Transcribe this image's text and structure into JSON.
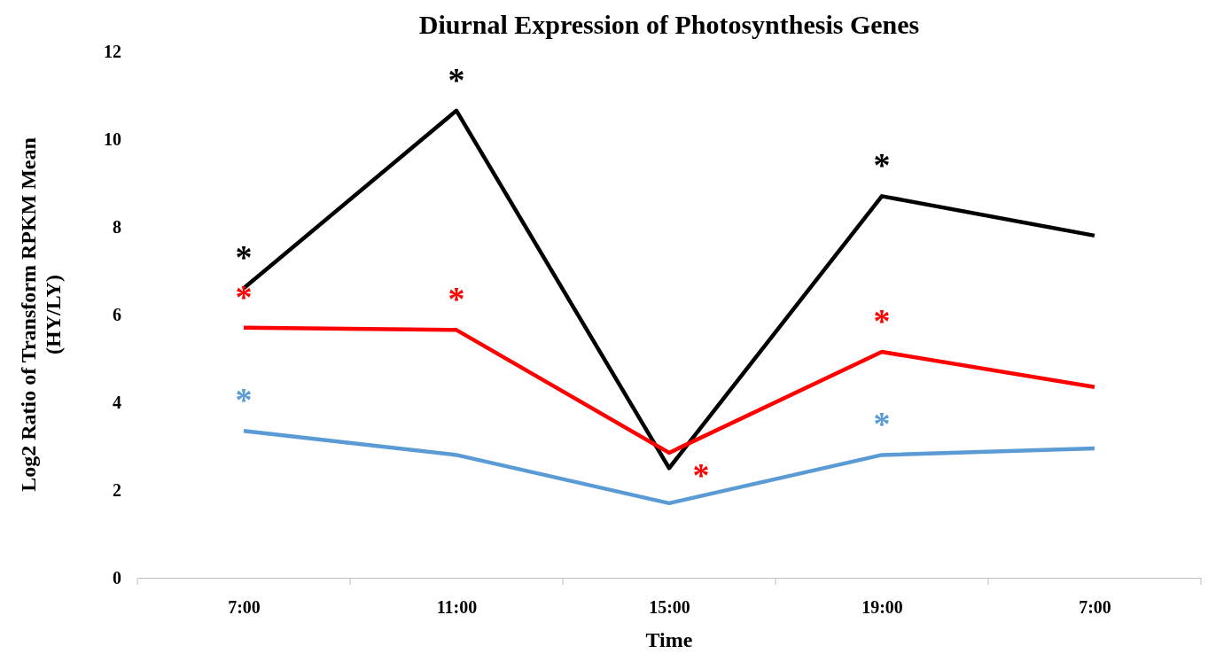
{
  "chart_data": {
    "type": "line",
    "title": "Diurnal Expression of Photosynthesis Genes",
    "xlabel": "Time",
    "ylabel": "Log2 Ratio of Transform RPKM Mean\n(HY/LY)",
    "categories": [
      "7:00",
      "11:00",
      "15:00",
      "19:00",
      "7:00"
    ],
    "ylim": [
      0,
      12
    ],
    "yticks": [
      0,
      2,
      4,
      6,
      8,
      10,
      12
    ],
    "grid": false,
    "marker": "none",
    "line_style": "solid",
    "series": [
      {
        "color": "#000000",
        "values": [
          6.6,
          10.65,
          2.5,
          8.7,
          7.8
        ],
        "value_labels": [
          "*",
          "*",
          null,
          "*",
          null
        ]
      },
      {
        "color": "#ff0000",
        "values": [
          5.7,
          5.65,
          2.85,
          5.15,
          4.35
        ],
        "value_labels": [
          "*",
          "*",
          "*",
          "*",
          null
        ]
      },
      {
        "color": "#5b9bd5",
        "values": [
          3.35,
          2.8,
          1.7,
          2.8,
          2.95
        ],
        "value_labels": [
          "*",
          null,
          null,
          "*",
          null
        ]
      }
    ]
  }
}
